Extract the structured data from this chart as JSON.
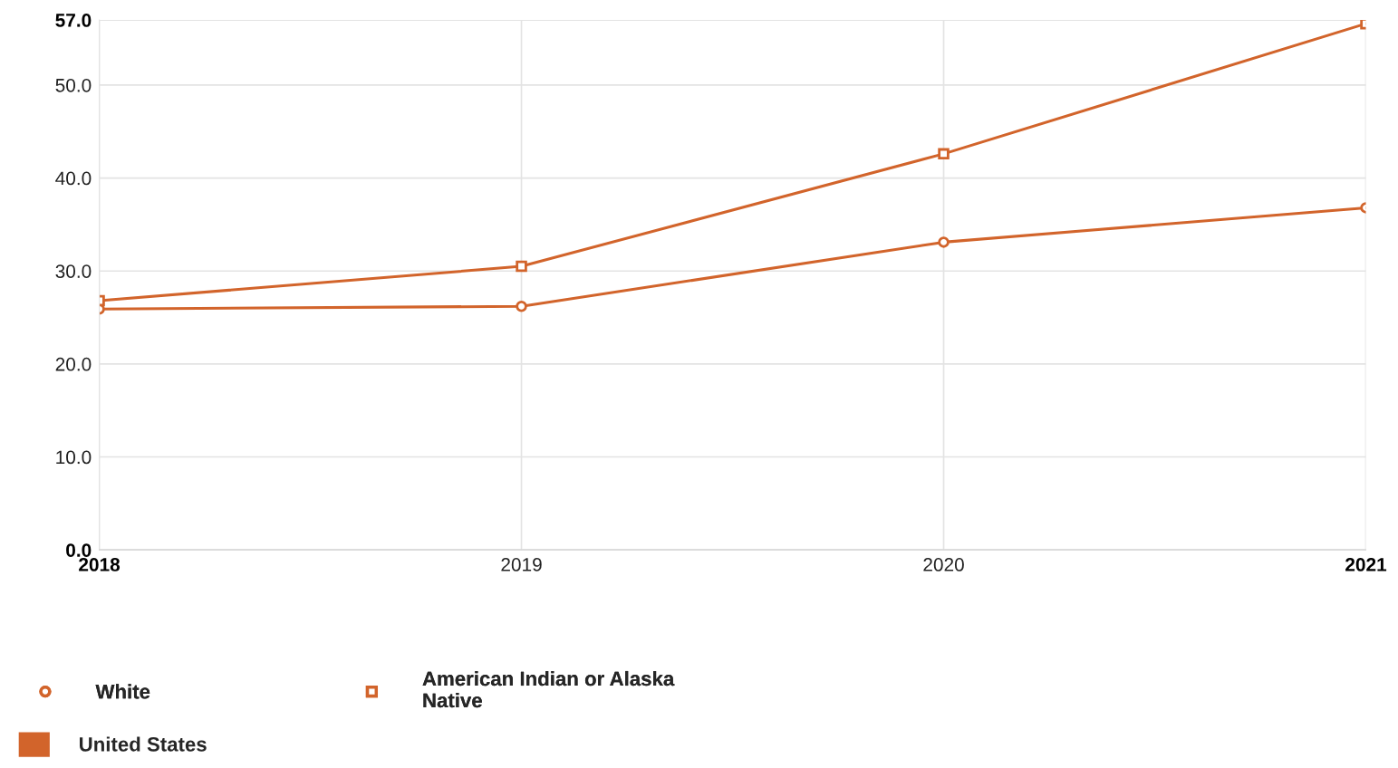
{
  "chart_data": {
    "type": "line",
    "x": [
      2018,
      2019,
      2020,
      2021
    ],
    "series": [
      {
        "name": "White",
        "color": "#d2642b",
        "values": [
          25.9,
          26.2,
          33.1,
          36.8
        ],
        "marker": "circle"
      },
      {
        "name": "American Indian or Alaska\nNative",
        "color": "#d2642b",
        "values": [
          26.8,
          30.5,
          42.6,
          56.6
        ],
        "marker": "square"
      }
    ],
    "legend_title": "United States",
    "xlim": [
      2018,
      2021
    ],
    "xticks": [
      2018,
      2019,
      2020,
      2021
    ],
    "ylim": [
      0,
      57
    ],
    "yticks": [
      {
        "value": 0,
        "label": "0.0"
      },
      {
        "value": 10,
        "label": "10.0"
      },
      {
        "value": 20,
        "label": "20.0"
      },
      {
        "value": 30,
        "label": "30.0"
      },
      {
        "value": 40,
        "label": "40.0"
      },
      {
        "value": 50,
        "label": "50.0"
      },
      {
        "value": 57,
        "label": "57.0"
      }
    ],
    "grid": true,
    "legend": "bottom left",
    "line_style": "solid"
  }
}
